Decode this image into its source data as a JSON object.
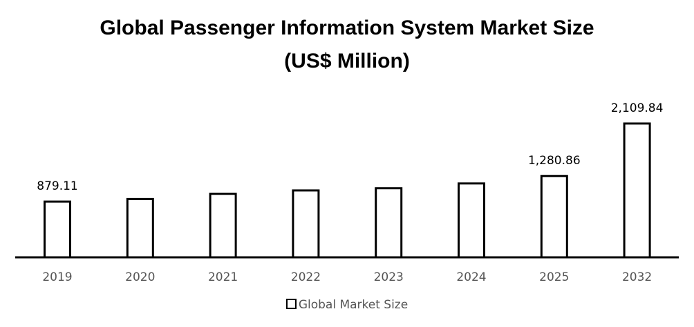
{
  "chart_data": {
    "type": "bar",
    "title_line1": "Global Passenger Information System Market Size",
    "title_line2": "(US$ Million)",
    "categories": [
      "2019",
      "2020",
      "2021",
      "2022",
      "2023",
      "2024",
      "2025",
      "2032"
    ],
    "series": [
      {
        "name": "Global Market Size",
        "values": [
          879.11,
          920,
          1000,
          1055,
          1090,
          1165,
          1280.86,
          2109.84
        ]
      }
    ],
    "data_labels": [
      "879.11",
      "",
      "",
      "",
      "",
      "",
      "1,280.86",
      "2,109.84"
    ],
    "legend_position": "bottom",
    "grid": false,
    "ylim": [
      0,
      2109.84
    ],
    "colors": {
      "bar_fill": "#ffffff",
      "bar_stroke": "#000000",
      "axis": "#000000"
    }
  }
}
